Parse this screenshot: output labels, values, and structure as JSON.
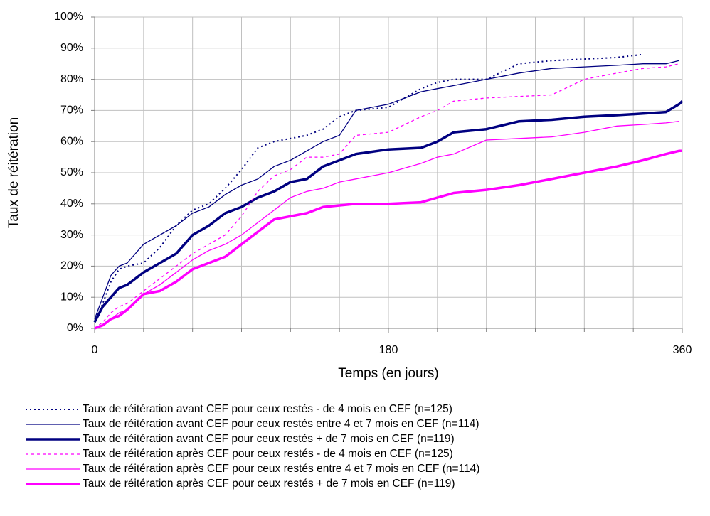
{
  "chart_data": {
    "type": "line",
    "xlabel": "Temps (en jours)",
    "ylabel": "Taux de réitération",
    "xlim": [
      0,
      360
    ],
    "xticks": [
      0,
      180,
      360
    ],
    "x_grid_step": 30,
    "ylim": [
      0,
      100
    ],
    "yticks": [
      {
        "value": 0,
        "label": "0%"
      },
      {
        "value": 10,
        "label": "10%"
      },
      {
        "value": 20,
        "label": "20%"
      },
      {
        "value": 30,
        "label": "30%"
      },
      {
        "value": 40,
        "label": "40%"
      },
      {
        "value": 50,
        "label": "50%"
      },
      {
        "value": 60,
        "label": "60%"
      },
      {
        "value": 70,
        "label": "70%"
      },
      {
        "value": 80,
        "label": "80%"
      },
      {
        "value": 90,
        "label": "90%"
      },
      {
        "value": 100,
        "label": "100%"
      }
    ],
    "grid": true,
    "legend": "bottom",
    "x": [
      0,
      5,
      10,
      15,
      20,
      30,
      40,
      50,
      60,
      70,
      80,
      90,
      100,
      110,
      120,
      130,
      140,
      150,
      160,
      180,
      200,
      210,
      220,
      240,
      260,
      280,
      300,
      320,
      336,
      350,
      358,
      360
    ],
    "series": [
      {
        "name": "Taux de réitération avant CEF pour ceux restés - de 4 mois en CEF (n=125)",
        "color": "#000080",
        "dash": "2,4",
        "width": 2,
        "values": [
          2,
          8,
          15,
          19,
          20,
          21,
          26,
          33,
          38,
          40,
          45,
          51,
          58,
          60,
          61,
          62,
          64,
          68,
          70,
          71,
          77,
          79,
          80,
          80,
          85,
          86,
          86.5,
          87,
          88,
          null,
          null,
          null
        ]
      },
      {
        "name": "Taux de réitération avant CEF pour ceux restés entre 4 et 7 mois en CEF (n=114)",
        "color": "#000080",
        "dash": "none",
        "width": 1.3,
        "values": [
          3,
          10,
          17,
          20,
          21,
          27,
          30,
          33,
          37,
          39,
          43,
          46,
          48,
          52,
          54,
          57,
          60,
          62,
          70,
          72,
          76,
          77,
          78,
          80,
          82,
          83.5,
          84,
          84.5,
          85,
          85,
          86,
          null
        ]
      },
      {
        "name": "Taux de réitération avant CEF pour ceux restés + de 7 mois en CEF (n=119)",
        "color": "#000080",
        "dash": "none",
        "width": 3.5,
        "values": [
          2,
          7,
          10,
          13,
          14,
          18,
          21,
          24,
          30,
          33,
          37,
          39,
          42,
          44,
          47,
          48,
          52,
          54,
          56,
          57.5,
          58,
          60,
          63,
          64,
          66.5,
          67,
          68,
          68.5,
          69,
          69.5,
          72,
          73
        ]
      },
      {
        "name": "Taux de réitération après CEF pour ceux restés - de 4 mois en CEF (n=125)",
        "color": "#ff00ff",
        "dash": "4,4",
        "width": 1.3,
        "values": [
          0,
          2,
          5,
          7,
          8,
          12,
          16,
          20,
          24,
          27,
          30,
          36,
          44,
          49,
          51,
          55,
          55,
          56,
          62,
          63,
          68,
          70,
          73,
          74,
          74.5,
          75,
          80,
          82,
          83.5,
          84,
          85,
          null
        ]
      },
      {
        "name": "Taux de réitération après CEF pour ceux restés entre 4 et 7 mois en CEF (n=114)",
        "color": "#ff00ff",
        "dash": "none",
        "width": 1.3,
        "values": [
          0,
          1,
          3,
          5,
          6,
          11,
          14,
          18,
          22,
          25,
          27,
          30,
          34,
          38,
          42,
          44,
          45,
          47,
          48,
          50,
          53,
          55,
          56,
          60.5,
          61,
          61.5,
          63,
          65,
          65.5,
          66,
          66.5,
          null
        ]
      },
      {
        "name": "Taux de réitération après CEF pour ceux restés + de 7 mois en CEF (n=119)",
        "color": "#ff00ff",
        "dash": "none",
        "width": 3.5,
        "values": [
          0,
          1,
          3,
          4,
          6,
          11,
          12,
          15,
          19,
          21,
          23,
          27,
          31,
          35,
          36,
          37,
          39,
          39.5,
          40,
          40,
          40.5,
          42,
          43.5,
          44.5,
          46,
          48,
          50,
          52,
          54,
          56,
          57,
          57
        ]
      }
    ]
  }
}
